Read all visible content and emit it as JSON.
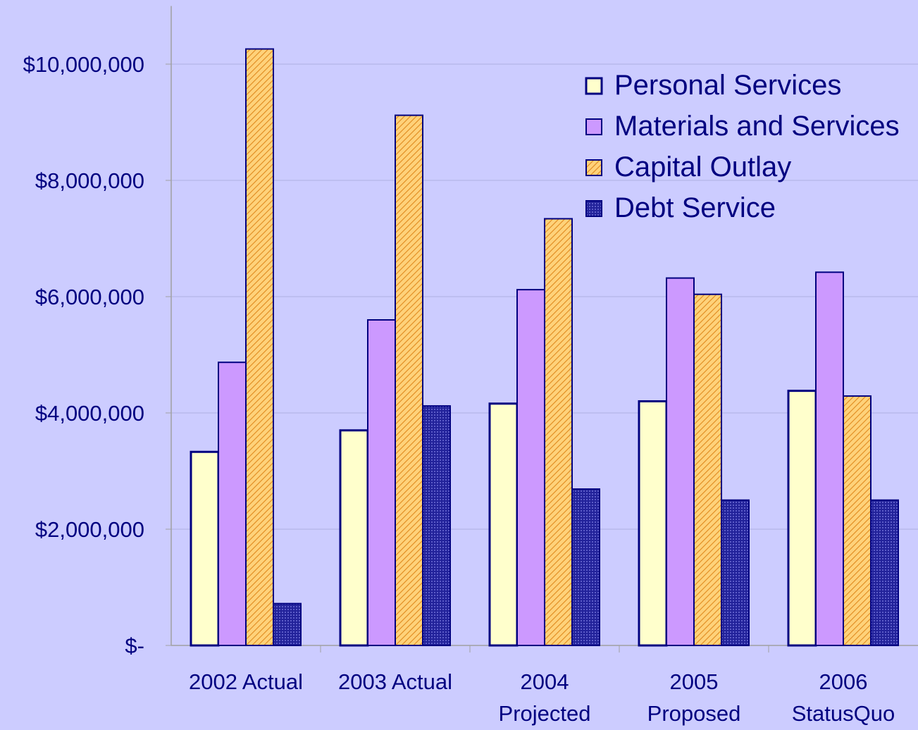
{
  "chart_data": {
    "type": "bar",
    "title": "",
    "xlabel": "",
    "ylabel": "",
    "categories": [
      [
        "2002 Actual"
      ],
      [
        "2003 Actual"
      ],
      [
        "2004",
        "Projected"
      ],
      [
        "2005",
        "Proposed"
      ],
      [
        "2006",
        "StatusQuo"
      ]
    ],
    "ylim": [
      0,
      11000000
    ],
    "y_ticks": [
      0,
      2000000,
      4000000,
      6000000,
      8000000,
      10000000
    ],
    "y_tick_labels": [
      "$-",
      "$2,000,000",
      "$4,000,000",
      "$6,000,000",
      "$8,000,000",
      "$10,000,000"
    ],
    "grid": true,
    "legend_position": "top-right",
    "series": [
      {
        "name": "Personal Services",
        "values": [
          3330000,
          3700000,
          4160000,
          4200000,
          4380000
        ],
        "color": "#ffffcc",
        "pattern": "solid"
      },
      {
        "name": "Materials and Services",
        "values": [
          4870000,
          5600000,
          6120000,
          6320000,
          6420000
        ],
        "color": "#cc99ff",
        "pattern": "solid"
      },
      {
        "name": "Capital Outlay",
        "values": [
          10260000,
          9120000,
          7340000,
          6040000,
          4290000
        ],
        "color": "#ffc266",
        "pattern": "diagonal-hatch"
      },
      {
        "name": "Debt Service",
        "values": [
          720000,
          4120000,
          2690000,
          2500000,
          2500000
        ],
        "color": "#1a1a8c",
        "pattern": "dotted"
      }
    ],
    "colors": {
      "background": "#ccccff",
      "text": "#000080",
      "bar_outline": "#000080",
      "gridline": "#aeb0e0",
      "axis": "#a0a0a0"
    }
  }
}
